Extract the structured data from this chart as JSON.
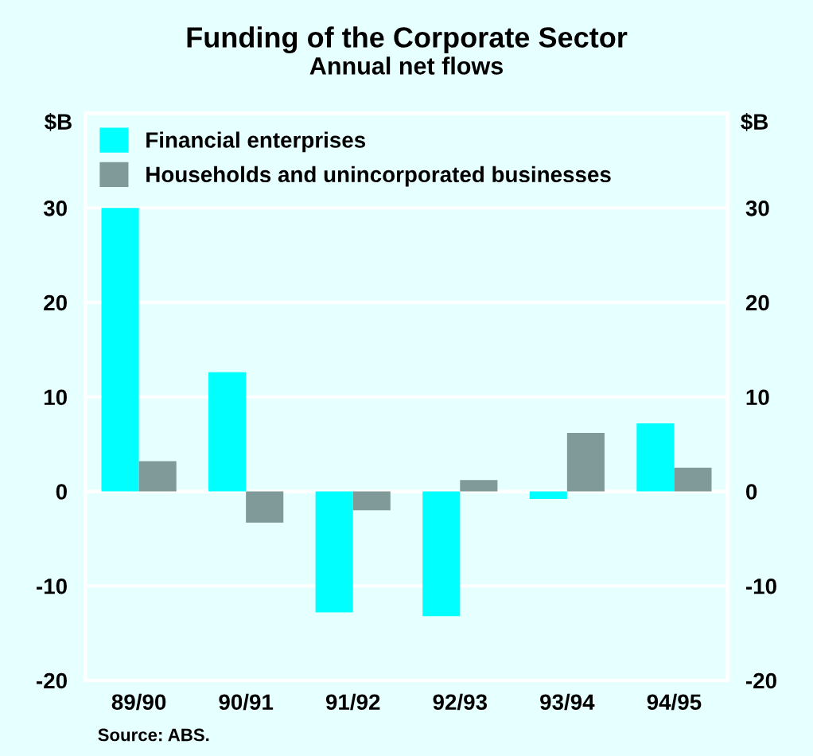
{
  "chart_data": {
    "type": "bar",
    "title": "Funding of the Corporate Sector",
    "subtitle": "Annual net flows",
    "ylabel": "$B",
    "y2label": "$B",
    "categories": [
      "89/90",
      "90/91",
      "91/92",
      "92/93",
      "93/94",
      "94/95"
    ],
    "series": [
      {
        "name": "Financial enterprises",
        "color": "#00ffff",
        "values": [
          30,
          12.6,
          -12.8,
          -13.2,
          -0.8,
          7.2
        ]
      },
      {
        "name": "Households and unincorporated businesses",
        "color": "#809a9a",
        "values": [
          3.2,
          -3.3,
          -2.0,
          1.2,
          6.2,
          2.5
        ]
      }
    ],
    "ylim": [
      -20,
      40
    ],
    "yticks": [
      -20,
      -10,
      0,
      10,
      20,
      30
    ],
    "y2lim": [
      -20,
      40
    ],
    "y2ticks": [
      -20,
      -10,
      0,
      10,
      20,
      30
    ],
    "grid": "y",
    "legend": "top left",
    "annotations": [
      "Source: ABS."
    ]
  }
}
